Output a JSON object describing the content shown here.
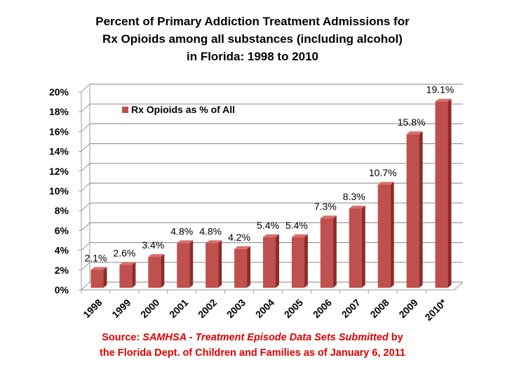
{
  "chart_data": {
    "type": "bar",
    "title_lines": [
      "Percent of Primary Addiction Treatment Admissions for",
      "Rx Opioids among all substances (including alcohol)",
      "in Florida: 1998 to 2010"
    ],
    "categories": [
      "1998",
      "1999",
      "2000",
      "2001",
      "2002",
      "2003",
      "2004",
      "2005",
      "2006",
      "2007",
      "2008",
      "2009",
      "2010*"
    ],
    "series": [
      {
        "name": "Rx Opioids as % of All",
        "values": [
          2.1,
          2.6,
          3.4,
          4.8,
          4.8,
          4.2,
          5.4,
          5.4,
          7.3,
          8.3,
          10.7,
          15.8,
          19.1
        ],
        "labels": [
          "2.1%",
          "2.6%",
          "3.4%",
          "4.8%",
          "4.8%",
          "4.2%",
          "5.4%",
          "5.4%",
          "7.3%",
          "8.3%",
          "10.7%",
          "15.8%",
          "19.1%"
        ]
      }
    ],
    "y_ticks": [
      "0%",
      "2%",
      "4%",
      "6%",
      "8%",
      "10%",
      "12%",
      "14%",
      "16%",
      "18%",
      "20%"
    ],
    "ylim": [
      0,
      20
    ],
    "grid": true,
    "legend": "top-center",
    "bar_3d": true,
    "colors": {
      "bar": "#c0504d",
      "bar_side": "#8b2c2a",
      "bar_top": "#d9706c",
      "source_text": "#e00000"
    }
  },
  "source": {
    "prefix": "Source: ",
    "italic": "SAMHSA - Treatment Episode Data Sets  Submitted",
    "suffix": " by",
    "line2": "the Florida Dept. of Children and Families as of January 6, 2011"
  }
}
